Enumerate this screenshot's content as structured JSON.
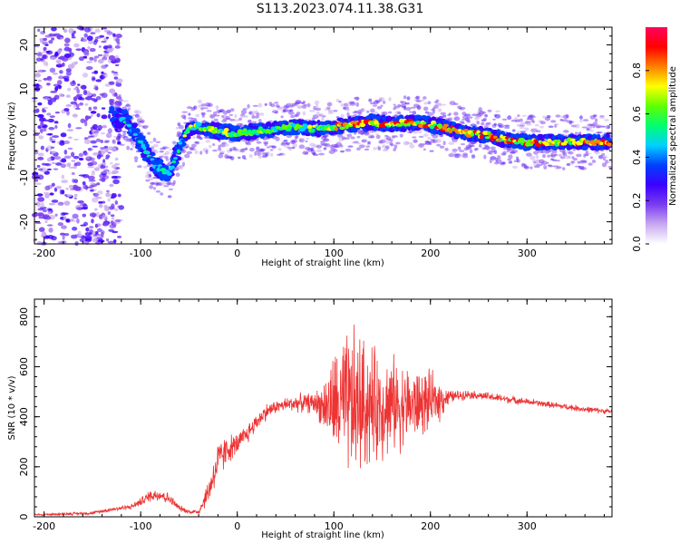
{
  "title": "S113.2023.074.11.38.G31",
  "chart_data": [
    {
      "type": "heatmap",
      "xlabel": "Height of straight line (km)",
      "ylabel": "Frequency (Hz)",
      "xlim": [
        -210,
        388
      ],
      "ylim": [
        -25,
        24
      ],
      "xticks": [
        -200,
        -100,
        0,
        100,
        200,
        300
      ],
      "yticks": [
        -20,
        -10,
        0,
        10,
        20
      ],
      "colorbar": {
        "label": "Normalized spectral amplitude",
        "range": [
          0,
          1
        ],
        "ticks": [
          "0.0",
          "0.2",
          "0.4",
          "0.6",
          "0.8"
        ],
        "colors": [
          "#ffffff",
          "#c8a8f0",
          "#7a3cf0",
          "#3c00ff",
          "#0040ff",
          "#00d0ff",
          "#00ff70",
          "#60ff00",
          "#ffff00",
          "#ff8000",
          "#ff0000",
          "#ff0060"
        ]
      },
      "ridge": {
        "x": [
          -130,
          -115,
          -100,
          -90,
          -80,
          -70,
          -60,
          -50,
          -40,
          -20,
          0,
          20,
          40,
          60,
          80,
          100,
          120,
          140,
          160,
          180,
          200,
          220,
          240,
          260,
          280,
          300,
          320,
          340,
          360,
          380
        ],
        "y": [
          4,
          3,
          -2,
          -6,
          -8,
          -9,
          -3,
          1,
          1.5,
          0.5,
          0,
          0.5,
          1,
          1.5,
          1,
          1.5,
          2,
          2.5,
          2,
          2.5,
          2,
          1,
          0,
          -0.5,
          -1.5,
          -2,
          -2,
          -2,
          -2,
          -2
        ]
      },
      "noise_region": {
        "x": [
          -210,
          -120
        ],
        "y": [
          -25,
          24
        ]
      }
    },
    {
      "type": "line",
      "xlabel": "Height of straight line (km)",
      "ylabel": "SNR (10 * v/v)",
      "xlim": [
        -210,
        388
      ],
      "ylim": [
        0,
        870
      ],
      "xticks": [
        -200,
        -100,
        0,
        100,
        200,
        300
      ],
      "yticks": [
        0,
        200,
        400,
        600,
        800
      ],
      "color": "#ee3333",
      "envelope": {
        "x": [
          -210,
          -150,
          -130,
          -110,
          -100,
          -90,
          -80,
          -70,
          -60,
          -50,
          -40,
          -30,
          -20,
          -10,
          0,
          10,
          20,
          30,
          40,
          60,
          80,
          90,
          100,
          110,
          120,
          130,
          140,
          160,
          180,
          200,
          210,
          220,
          240,
          260,
          280,
          300,
          320,
          340,
          360,
          388
        ],
        "mean": [
          8,
          15,
          30,
          40,
          60,
          85,
          90,
          70,
          35,
          20,
          20,
          100,
          220,
          270,
          290,
          330,
          380,
          420,
          440,
          455,
          455,
          445,
          445,
          440,
          440,
          450,
          440,
          450,
          445,
          460,
          470,
          480,
          490,
          480,
          470,
          460,
          450,
          440,
          430,
          420
        ],
        "amp": [
          5,
          8,
          10,
          12,
          20,
          30,
          35,
          25,
          15,
          10,
          15,
          60,
          100,
          70,
          50,
          50,
          40,
          40,
          30,
          40,
          50,
          120,
          250,
          330,
          380,
          330,
          280,
          230,
          180,
          140,
          100,
          30,
          20,
          20,
          20,
          15,
          15,
          15,
          15,
          12
        ]
      }
    }
  ]
}
